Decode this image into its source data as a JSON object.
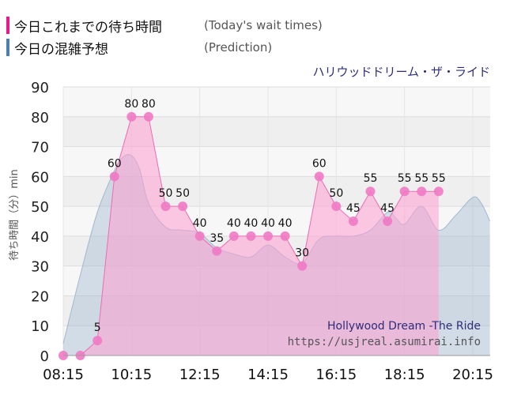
{
  "legend": {
    "actual_label": "今日これまでの待ち時間",
    "actual_note": "(Today's wait times)",
    "actual_color": "#e8198b",
    "prediction_label": "今日の混雑予想",
    "prediction_note": "(Prediction)",
    "prediction_color": "#4a7fb0"
  },
  "chart_data": {
    "type": "area",
    "title": "ハリウッドドリーム・ザ・ライド",
    "ylabel": "待ち時間（分）min",
    "ylim": [
      0,
      90
    ],
    "yticks": [
      "0",
      "10",
      "20",
      "30",
      "40",
      "50",
      "60",
      "70",
      "80",
      "90"
    ],
    "xticks": [
      "08:15",
      "10:15",
      "12:15",
      "14:15",
      "16:15",
      "18:15",
      "20:15"
    ],
    "grid": true,
    "watermark": {
      "name": "Hollywood Dream -The Ride",
      "url": "https://usjreal.asumirai.info"
    },
    "series": [
      {
        "name": "今日これまでの待ち時間",
        "style": "markers-with-labels",
        "color": "#e8198b",
        "x": [
          "08:15",
          "08:45",
          "09:15",
          "09:45",
          "10:15",
          "10:45",
          "11:15",
          "11:45",
          "12:15",
          "12:45",
          "13:15",
          "13:45",
          "14:15",
          "14:45",
          "15:15",
          "15:45",
          "16:15",
          "16:45",
          "17:15",
          "17:45",
          "18:15",
          "18:45",
          "19:15"
        ],
        "values": [
          0,
          0,
          5,
          60,
          80,
          80,
          50,
          50,
          40,
          35,
          40,
          40,
          40,
          40,
          30,
          60,
          50,
          45,
          55,
          45,
          55,
          55,
          55
        ]
      },
      {
        "name": "今日の混雑予想",
        "style": "area",
        "color": "#9db8cf",
        "x": [
          "08:15",
          "08:45",
          "09:15",
          "09:45",
          "10:00",
          "10:15",
          "10:30",
          "10:45",
          "11:15",
          "11:45",
          "12:15",
          "12:45",
          "13:15",
          "13:45",
          "14:15",
          "14:45",
          "15:15",
          "15:45",
          "16:15",
          "16:45",
          "17:15",
          "17:45",
          "18:00",
          "18:15",
          "18:45",
          "19:15",
          "19:45",
          "20:15",
          "20:30",
          "20:45"
        ],
        "values": [
          4,
          27,
          48,
          62,
          66.5,
          67,
          62,
          51,
          43,
          42,
          41,
          36,
          34,
          33,
          37,
          33,
          31,
          39,
          40,
          40,
          42,
          48,
          46,
          44,
          50,
          42,
          47,
          53,
          51,
          45
        ]
      }
    ]
  }
}
